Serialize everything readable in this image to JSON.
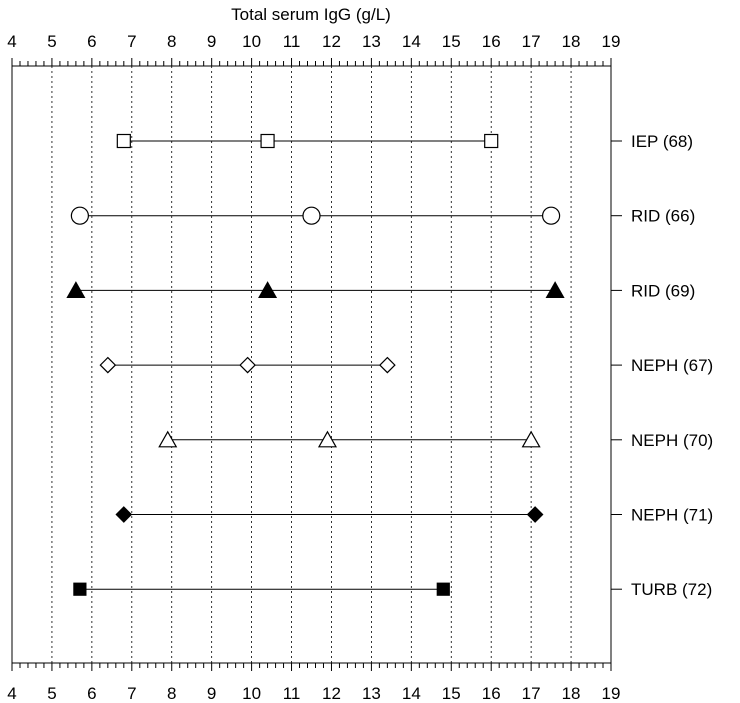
{
  "chart_data": {
    "type": "scatter",
    "title": "",
    "xlabel": "Total serum IgG (g/L)",
    "ylabel": "",
    "xlim": [
      4,
      19
    ],
    "xticks": [
      4,
      5,
      6,
      7,
      8,
      9,
      10,
      11,
      12,
      13,
      14,
      15,
      16,
      17,
      18,
      19
    ],
    "grid": "vertical dotted at each integer",
    "categories": [
      "IEP (68)",
      "RID (66)",
      "RID (69)",
      "NEPH (67)",
      "NEPH (70)",
      "NEPH (71)",
      "TURB (72)"
    ],
    "series": [
      {
        "category": "IEP (68)",
        "marker": "square-open",
        "values": [
          6.8,
          10.4,
          16.0
        ]
      },
      {
        "category": "RID (66)",
        "marker": "circle-open",
        "values": [
          5.7,
          11.5,
          17.5
        ]
      },
      {
        "category": "RID (69)",
        "marker": "triangle-filled",
        "values": [
          5.6,
          10.4,
          17.6
        ]
      },
      {
        "category": "NEPH (67)",
        "marker": "diamond-open",
        "values": [
          6.4,
          9.9,
          13.4
        ]
      },
      {
        "category": "NEPH (70)",
        "marker": "triangle-open",
        "values": [
          7.9,
          11.9,
          17.0
        ]
      },
      {
        "category": "NEPH (71)",
        "marker": "diamond-filled",
        "values": [
          6.8,
          17.1
        ]
      },
      {
        "category": "TURB (72)",
        "marker": "square-filled",
        "values": [
          5.7,
          14.8
        ]
      }
    ]
  }
}
